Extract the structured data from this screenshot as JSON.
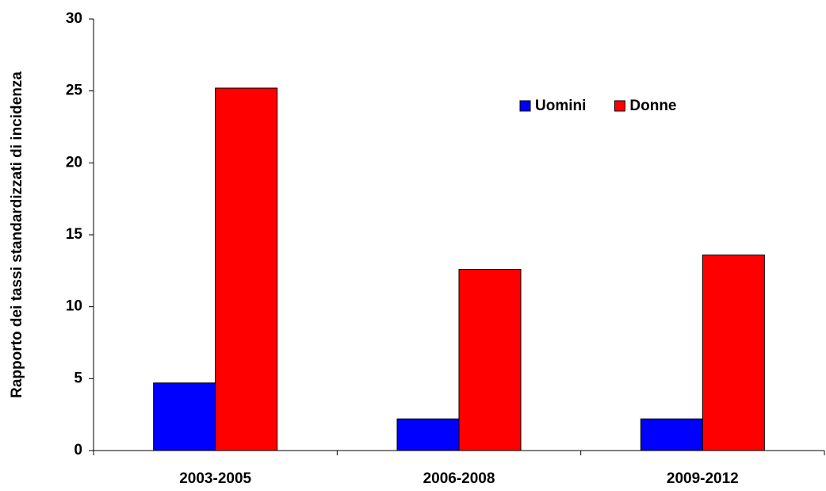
{
  "chart_data": {
    "type": "bar",
    "y_label": "Rapporto dei tassi standardizzati di incidenza",
    "categories": [
      "2003-2005",
      "2006-2008",
      "2009-2012"
    ],
    "series": [
      {
        "name": "Uomini",
        "color": "#0000ff",
        "values": [
          4.7,
          2.2,
          2.2
        ]
      },
      {
        "name": "Donne",
        "color": "#ff0000",
        "values": [
          25.2,
          12.6,
          13.6
        ]
      }
    ],
    "ylim": [
      0,
      30
    ],
    "yticks": [
      0,
      5,
      10,
      15,
      20,
      25,
      30
    ],
    "grid": false,
    "legend": "top-right"
  }
}
